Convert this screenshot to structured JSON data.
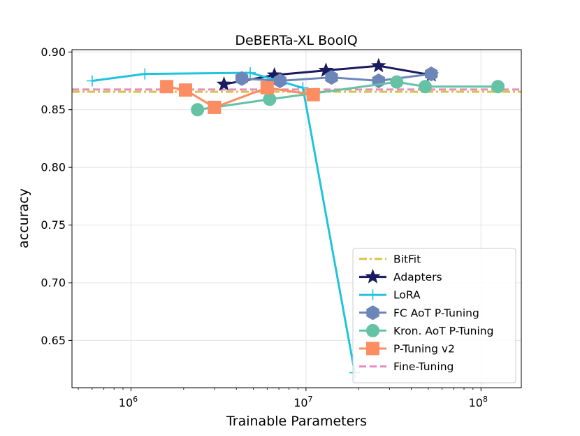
{
  "chart_data": {
    "type": "line",
    "title": "DeBERTa-XL BoolQ",
    "xlabel": "Trainable Parameters",
    "ylabel": "accuracy",
    "xscale": "log",
    "xlim": [
      460000,
      170000000
    ],
    "ylim": [
      0.609,
      0.902
    ],
    "xticks": [
      {
        "value": 1000000,
        "base": "10",
        "exp": "6"
      },
      {
        "value": 10000000,
        "base": "10",
        "exp": "7"
      },
      {
        "value": 100000000,
        "base": "10",
        "exp": "8"
      }
    ],
    "yticks": [
      0.65,
      0.7,
      0.75,
      0.8,
      0.85,
      0.9
    ],
    "ytick_labels": [
      "0.65",
      "0.70",
      "0.75",
      "0.80",
      "0.85",
      "0.90"
    ],
    "grid": true,
    "legend_position": "lower right",
    "hlines": [
      {
        "name": "BitFit",
        "y": 0.8655,
        "color": "#d4c44a",
        "dash": "dashdot"
      },
      {
        "name": "Fine-Tuning",
        "y": 0.8675,
        "color": "#e98bbf",
        "dash": "dashed"
      }
    ],
    "series": [
      {
        "name": "Adapters",
        "color": "#1a1a5e",
        "marker": "star",
        "x": [
          3400000,
          6600000,
          13000000,
          26000000,
          52000000
        ],
        "y": [
          0.872,
          0.88,
          0.884,
          0.888,
          0.88
        ]
      },
      {
        "name": "LoRA",
        "color": "#1fc4dc",
        "marker": "plus",
        "x": [
          600000,
          1200000,
          4800000,
          9600000,
          19000000
        ],
        "y": [
          0.875,
          0.881,
          0.882,
          0.869,
          0.622
        ]
      },
      {
        "name": "FC AoT P-Tuning",
        "color": "#6c86b9",
        "marker": "hexagon",
        "x": [
          4300000,
          7100000,
          14000000,
          26000000,
          52000000
        ],
        "y": [
          0.877,
          0.875,
          0.878,
          0.875,
          0.881
        ]
      },
      {
        "name": "Kron. AoT P-Tuning",
        "color": "#66c2a5",
        "marker": "circle",
        "x": [
          2400000,
          6200000,
          33000000,
          48000000,
          125000000
        ],
        "y": [
          0.85,
          0.859,
          0.874,
          0.87,
          0.87
        ]
      },
      {
        "name": "P-Tuning v2",
        "color": "#fc8d62",
        "marker": "square",
        "x": [
          1600000,
          2050000,
          3000000,
          6000000,
          11000000
        ],
        "y": [
          0.87,
          0.867,
          0.852,
          0.869,
          0.863
        ]
      }
    ],
    "legend_order": [
      "BitFit",
      "Adapters",
      "LoRA",
      "FC AoT P-Tuning",
      "Kron. AoT P-Tuning",
      "P-Tuning v2",
      "Fine-Tuning"
    ]
  }
}
